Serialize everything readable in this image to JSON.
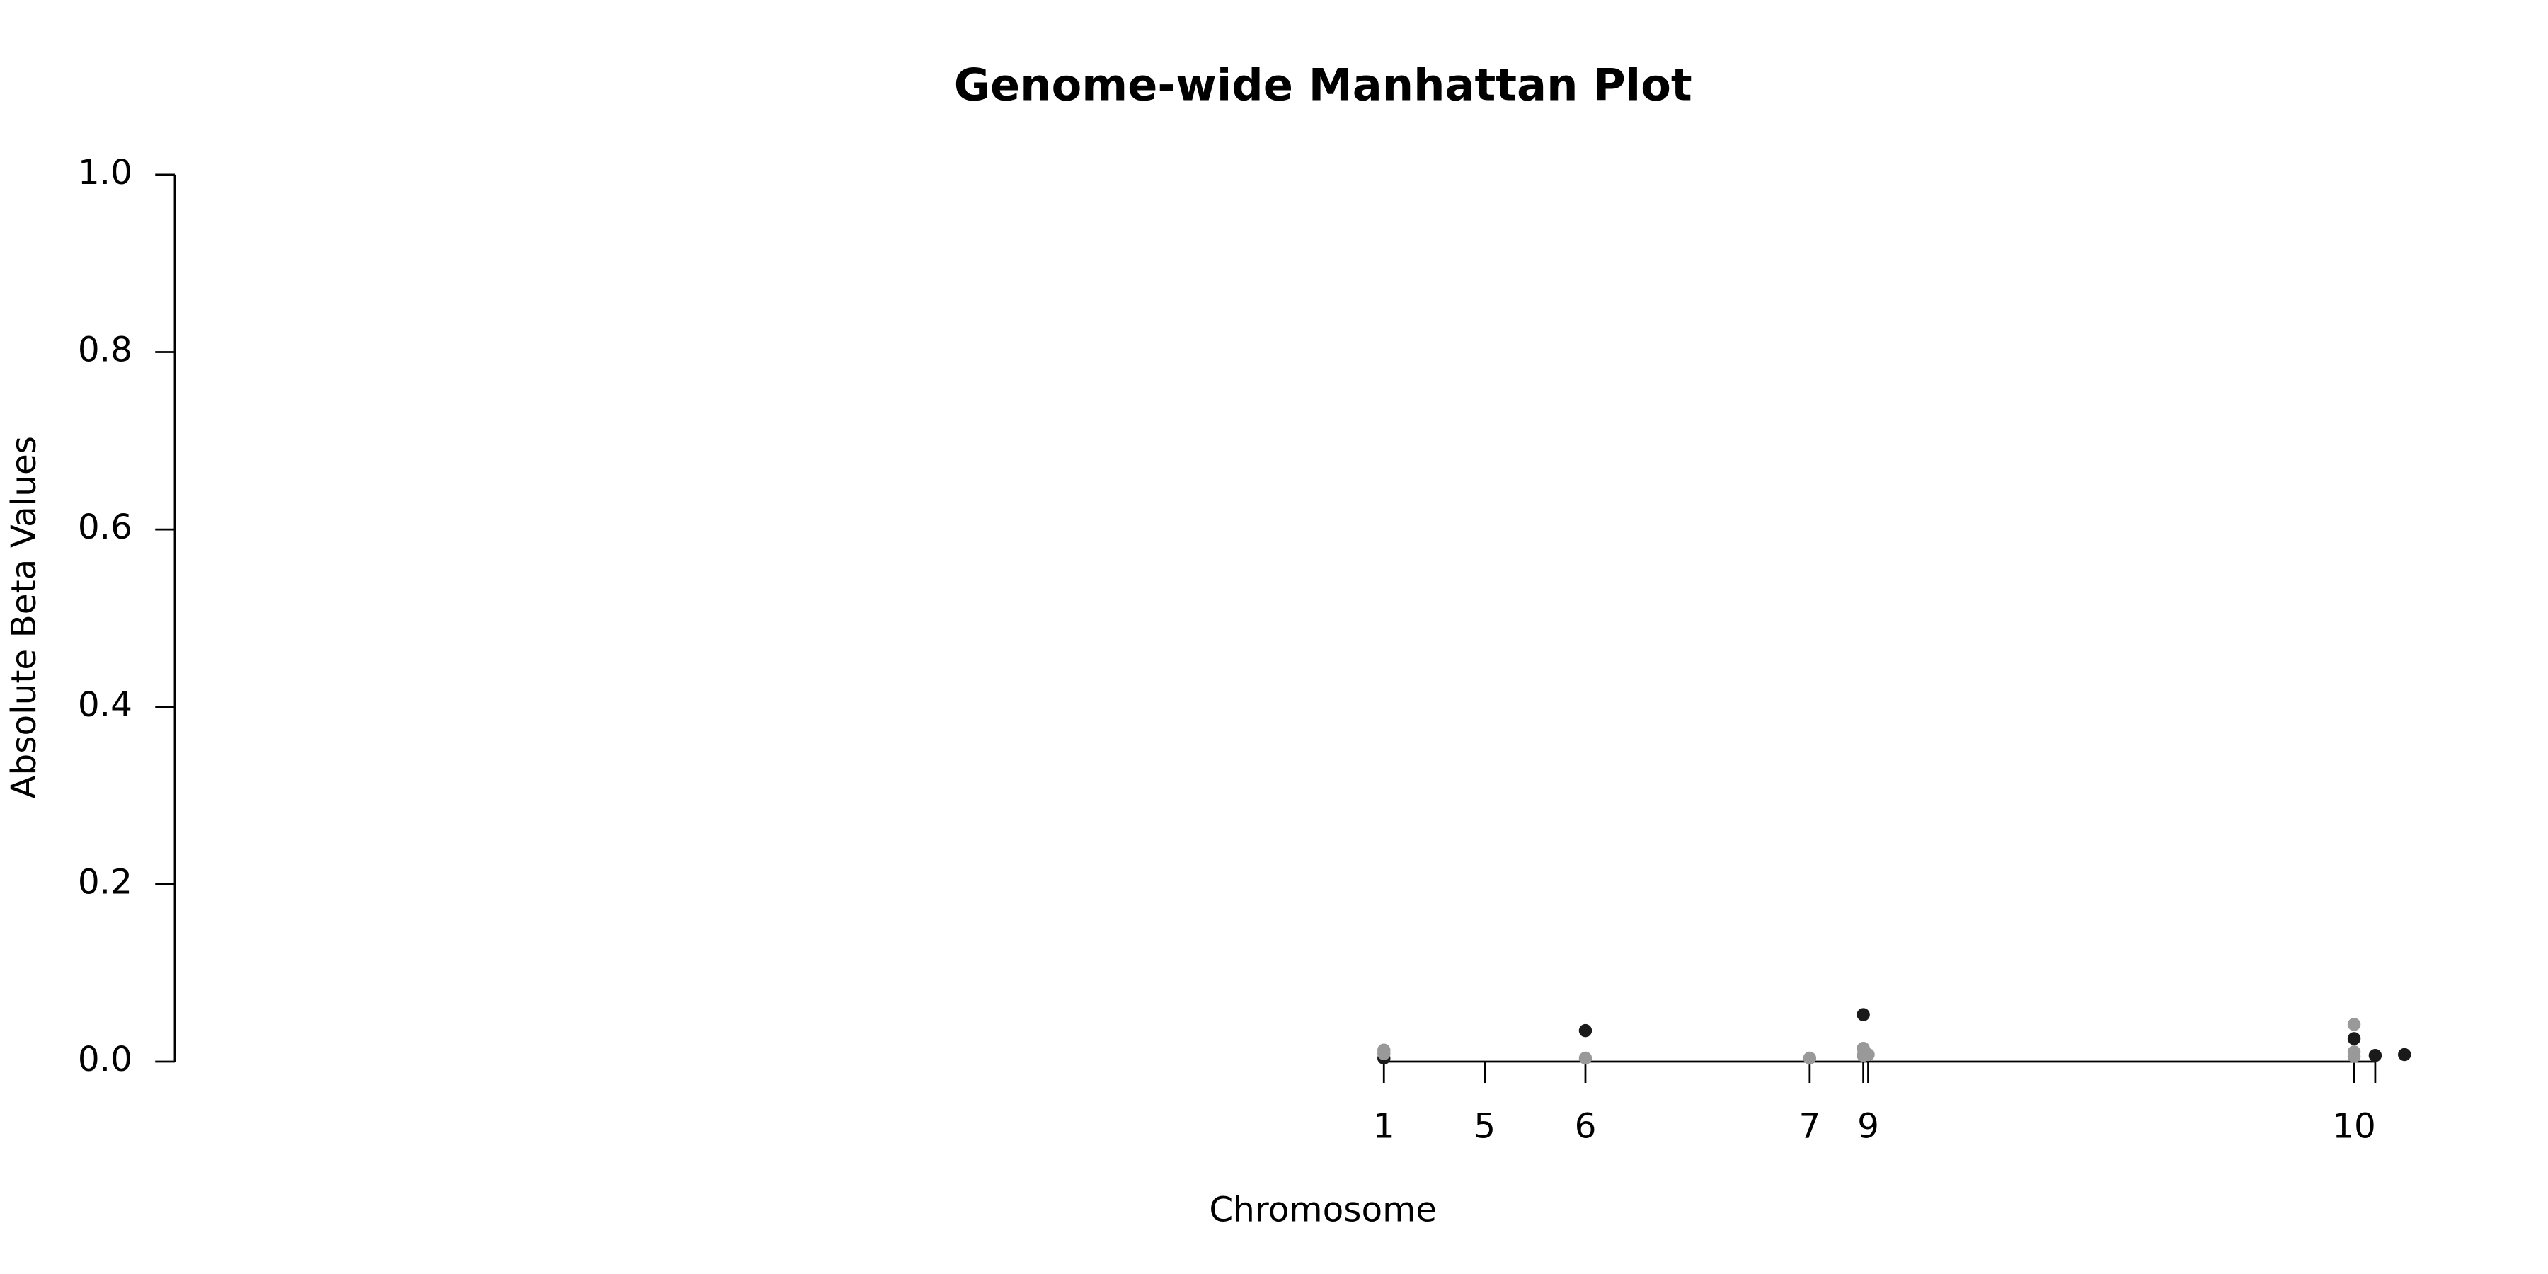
{
  "chart_data": {
    "type": "scatter",
    "title": "Genome-wide Manhattan Plot",
    "x_label": "Chromosome",
    "y_label": "Absolute Beta Values",
    "xlim": [
      0,
      140
    ],
    "ylim": [
      0,
      1.0
    ],
    "yticks": [
      {
        "value": 0,
        "label": "0.0"
      },
      {
        "value": 0.2,
        "label": "0.2"
      },
      {
        "value": 0.4,
        "label": "0.4"
      },
      {
        "value": 0.6,
        "label": "0.6"
      },
      {
        "value": 0.8,
        "label": "0.8"
      },
      {
        "value": 1.0,
        "label": "1.0"
      }
    ],
    "xticks": [
      {
        "value": 74.4,
        "label": "1"
      },
      {
        "value": 80.6,
        "label": "5"
      },
      {
        "value": 86.8,
        "label": "6"
      },
      {
        "value": 100.6,
        "label": "7"
      },
      {
        "value": 103.9,
        "label": null
      },
      {
        "value": 104.2,
        "label": "9"
      },
      {
        "value": 134.1,
        "label": "10"
      },
      {
        "value": 135.4,
        "label": null
      }
    ],
    "series": [
      {
        "color": "#1a1a1a",
        "x": [
          74.4,
          86.8,
          103.9,
          134.1,
          135.4,
          137.2
        ],
        "values": [
          0.004,
          0.035,
          0.053,
          0.026,
          0.007,
          0.008
        ]
      },
      {
        "color": "#999999",
        "x": [
          74.4,
          74.4,
          86.8,
          100.6,
          103.9,
          103.9,
          104.2,
          134.1,
          134.1,
          134.1
        ],
        "values": [
          0.013,
          0.009,
          0.004,
          0.004,
          0.015,
          0.007,
          0.008,
          0.042,
          0.011,
          0.006
        ]
      }
    ]
  }
}
